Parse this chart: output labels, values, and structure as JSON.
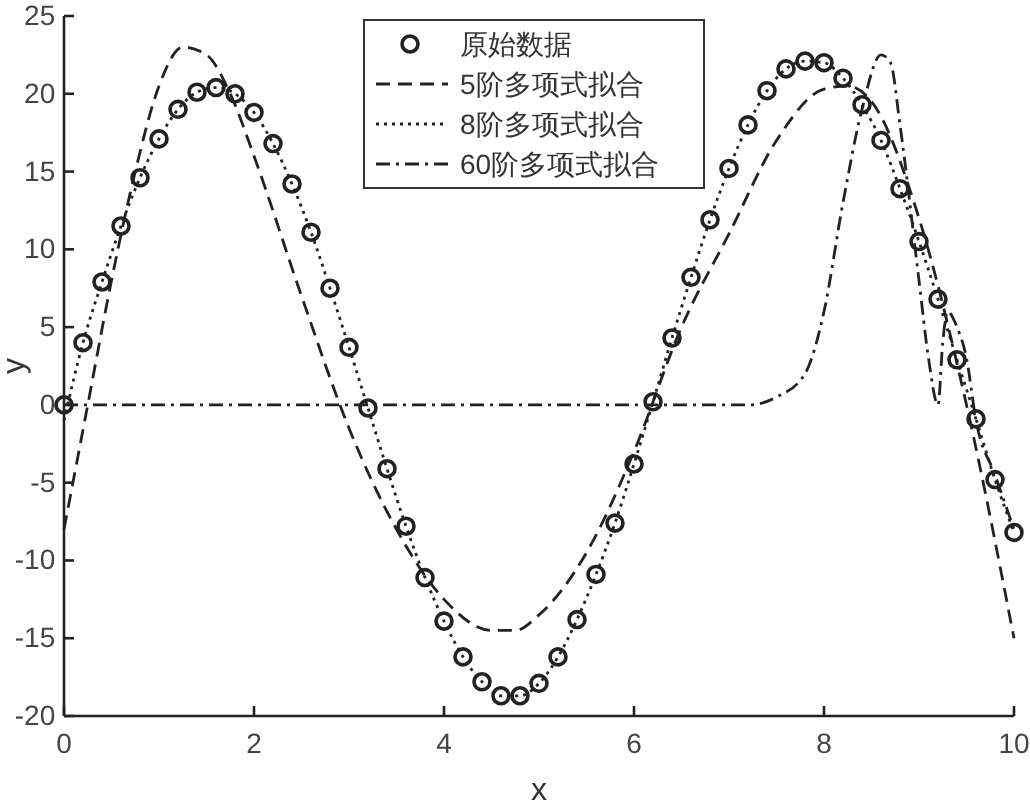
{
  "chart_data": {
    "type": "line",
    "xlabel": "x",
    "ylabel": "y",
    "xlim": [
      0,
      10
    ],
    "ylim": [
      -20,
      25
    ],
    "xticks": [
      0,
      2,
      4,
      6,
      8,
      10
    ],
    "yticks": [
      -20,
      -15,
      -10,
      -5,
      0,
      5,
      10,
      15,
      20,
      25
    ],
    "grid": false,
    "legend": "top",
    "series": [
      {
        "name": "原始数据",
        "type": "scatter",
        "marker": "circle",
        "color": "#222222",
        "x": [
          0,
          0.2,
          0.4,
          0.6,
          0.8,
          1,
          1.2,
          1.4,
          1.6,
          1.8,
          2,
          2.2,
          2.4,
          2.6,
          2.8,
          3,
          3.2,
          3.4,
          3.6,
          3.8,
          4,
          4.2,
          4.4,
          4.6,
          4.8,
          5,
          5.2,
          5.4,
          5.6,
          5.8,
          6,
          6.2,
          6.4,
          6.6,
          6.8,
          7,
          7.2,
          7.4,
          7.6,
          7.8,
          8,
          8.2,
          8.4,
          8.6,
          8.8,
          9,
          9.2,
          9.4,
          9.6,
          9.8,
          10
        ],
        "values": [
          0,
          4.0,
          7.9,
          11.5,
          14.6,
          17.1,
          19.0,
          20.1,
          20.4,
          20.0,
          18.8,
          16.8,
          14.2,
          11.1,
          7.5,
          3.7,
          -0.2,
          -4.1,
          -7.8,
          -11.1,
          -13.9,
          -16.2,
          -17.8,
          -18.7,
          -18.7,
          -17.9,
          -16.2,
          -13.8,
          -10.9,
          -7.6,
          -3.8,
          0.2,
          4.3,
          8.2,
          11.9,
          15.2,
          18.0,
          20.2,
          21.6,
          22.1,
          22.0,
          21.0,
          19.3,
          17.0,
          13.9,
          10.5,
          6.8,
          2.9,
          -0.9,
          -4.8,
          -8.2
        ]
      },
      {
        "name": "5阶多项式拟合",
        "line_style": "dashed",
        "color": "#222222",
        "x": [
          0,
          0.25,
          0.5,
          0.75,
          1,
          1.25,
          1.5,
          1.75,
          2,
          2.5,
          3,
          3.5,
          4,
          4.5,
          4.75,
          5,
          5.5,
          6,
          6.5,
          7,
          7.5,
          8,
          8.25,
          8.5,
          9,
          9.5,
          10
        ],
        "values": [
          -8,
          0,
          8,
          15,
          20.5,
          23,
          22.5,
          20,
          16,
          7,
          -1.5,
          -8,
          -12.5,
          -14.5,
          -14.5,
          -13.5,
          -9.5,
          -3,
          5,
          11,
          17,
          20.3,
          20.5,
          19.5,
          12,
          0,
          -15
        ]
      },
      {
        "name": "8阶多项式拟合",
        "line_style": "dotted",
        "color": "#222222",
        "x": [
          0,
          0.2,
          0.4,
          0.6,
          0.8,
          1,
          1.2,
          1.4,
          1.6,
          1.8,
          2,
          2.2,
          2.4,
          2.6,
          2.8,
          3,
          3.2,
          3.4,
          3.6,
          3.8,
          4,
          4.2,
          4.4,
          4.6,
          4.8,
          5,
          5.2,
          5.4,
          5.6,
          5.8,
          6,
          6.2,
          6.4,
          6.6,
          6.8,
          7,
          7.2,
          7.4,
          7.6,
          7.8,
          8,
          8.2,
          8.4,
          8.6,
          8.8,
          9,
          9.2,
          9.4,
          9.6,
          9.8,
          10
        ],
        "values": [
          -1,
          4.0,
          7.9,
          11.5,
          14.6,
          17.1,
          19.0,
          20.1,
          20.4,
          20.0,
          18.8,
          16.8,
          14.2,
          11.1,
          7.5,
          3.7,
          -0.2,
          -4.1,
          -7.8,
          -11.1,
          -13.9,
          -16.2,
          -17.8,
          -18.7,
          -18.7,
          -17.9,
          -16.2,
          -13.8,
          -10.9,
          -7.6,
          -3.8,
          0.2,
          4.3,
          8.2,
          11.9,
          15.2,
          18.0,
          20.2,
          21.6,
          22.1,
          22.0,
          21.0,
          19.3,
          17.0,
          13.9,
          10.5,
          6.8,
          2.9,
          -0.9,
          -4.8,
          -8.2
        ]
      },
      {
        "name": "60阶多项式拟合",
        "line_style": "dashdot",
        "color": "#222222",
        "x": [
          0,
          1,
          2,
          3,
          4,
          5,
          6,
          7,
          7.2,
          7.5,
          7.8,
          8,
          8.2,
          8.4,
          8.6,
          8.7,
          8.8,
          9,
          9.1,
          9.2,
          9.25,
          9.3,
          9.4,
          9.5,
          9.6,
          9.8,
          10
        ],
        "values": [
          0,
          0,
          0,
          0,
          0,
          0,
          0,
          0,
          0,
          0.5,
          2,
          6,
          13,
          19,
          22.5,
          22,
          18,
          8,
          3,
          0,
          4,
          6,
          5,
          3,
          -1,
          -4.5,
          -8
        ]
      }
    ]
  }
}
